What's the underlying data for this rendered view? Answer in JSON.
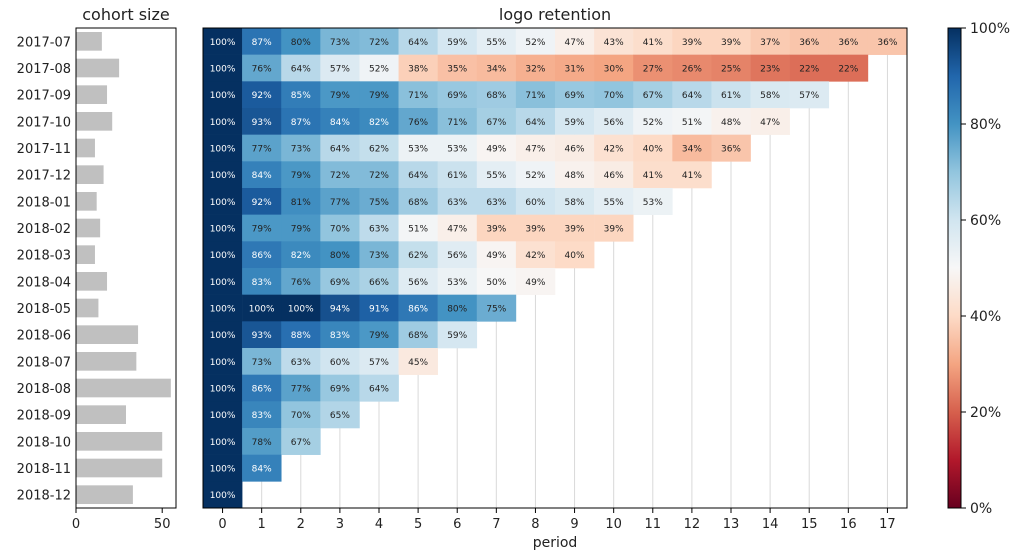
{
  "colors": {
    "bar": "#c0c0c0",
    "frame": "#000000",
    "text_dark": "#222222",
    "text_light": "#ffffff",
    "grid": "#d9d9d9",
    "scale": [
      "#67001f",
      "#b2182b",
      "#d6604d",
      "#f4a582",
      "#fddbc7",
      "#f7f7f7",
      "#d1e5f0",
      "#92c5de",
      "#4393c3",
      "#2166ac",
      "#053061"
    ]
  },
  "chart_data": [
    {
      "type": "bar",
      "orientation": "horizontal",
      "title": "cohort size",
      "categories": [
        "2017-07",
        "2017-08",
        "2017-09",
        "2017-10",
        "2017-11",
        "2017-12",
        "2018-01",
        "2018-02",
        "2018-03",
        "2018-04",
        "2018-05",
        "2018-06",
        "2018-07",
        "2018-08",
        "2018-09",
        "2018-10",
        "2018-11",
        "2018-12"
      ],
      "values": [
        15,
        25,
        18,
        21,
        11,
        16,
        12,
        14,
        11,
        18,
        13,
        36,
        35,
        55,
        29,
        50,
        50,
        33
      ],
      "xlim": [
        0,
        58
      ],
      "xticks": [
        "0",
        "50"
      ]
    },
    {
      "type": "heatmap",
      "title": "logo retention",
      "xlabel": "period",
      "x": [
        "0",
        "1",
        "2",
        "3",
        "4",
        "5",
        "6",
        "7",
        "8",
        "9",
        "10",
        "11",
        "12",
        "13",
        "14",
        "15",
        "16",
        "17"
      ],
      "rows": [
        [
          100,
          87,
          80,
          73,
          72,
          64,
          59,
          55,
          52,
          47,
          43,
          41,
          39,
          39,
          37,
          36,
          36,
          36
        ],
        [
          100,
          76,
          64,
          57,
          52,
          38,
          35,
          34,
          32,
          31,
          30,
          27,
          26,
          25,
          23,
          22,
          22
        ],
        [
          100,
          92,
          85,
          79,
          79,
          71,
          69,
          68,
          71,
          69,
          70,
          67,
          64,
          61,
          58,
          57
        ],
        [
          100,
          93,
          87,
          84,
          82,
          76,
          71,
          67,
          64,
          59,
          56,
          52,
          51,
          48,
          47
        ],
        [
          100,
          77,
          73,
          64,
          62,
          53,
          53,
          49,
          47,
          46,
          42,
          40,
          34,
          36
        ],
        [
          100,
          84,
          79,
          72,
          72,
          64,
          61,
          55,
          52,
          48,
          46,
          41,
          41
        ],
        [
          100,
          92,
          81,
          77,
          75,
          68,
          63,
          63,
          60,
          58,
          55,
          53
        ],
        [
          100,
          79,
          79,
          70,
          63,
          51,
          47,
          39,
          39,
          39,
          39
        ],
        [
          100,
          86,
          82,
          80,
          73,
          62,
          56,
          49,
          42,
          40
        ],
        [
          100,
          83,
          76,
          69,
          66,
          56,
          53,
          50,
          49
        ],
        [
          100,
          100,
          100,
          94,
          91,
          86,
          80,
          75
        ],
        [
          100,
          93,
          88,
          83,
          79,
          68,
          59
        ],
        [
          100,
          73,
          63,
          60,
          57,
          45
        ],
        [
          100,
          86,
          77,
          69,
          64
        ],
        [
          100,
          83,
          70,
          65
        ],
        [
          100,
          78,
          67
        ],
        [
          100,
          84
        ],
        [
          100
        ]
      ],
      "colorbar": {
        "range": [
          0,
          100
        ],
        "ticks": [
          "0%",
          "20%",
          "40%",
          "60%",
          "80%",
          "100%"
        ]
      }
    }
  ]
}
